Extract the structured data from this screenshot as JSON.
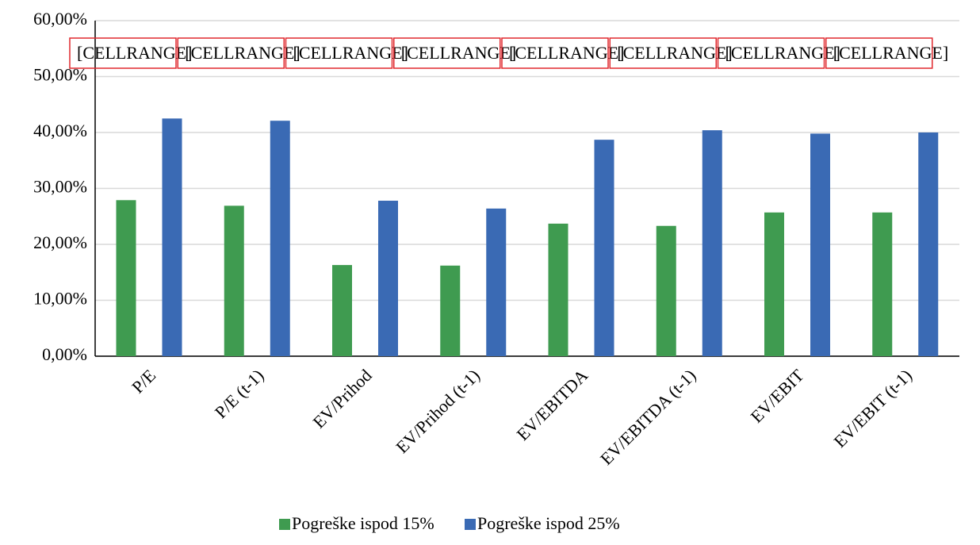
{
  "chart_data": {
    "type": "bar",
    "categories": [
      "P/E",
      "P/E (t-1)",
      "EV/Prihod",
      "EV/Prihod (t-1)",
      "EV/EBITDA",
      "EV/EBITDA (t-1)",
      "EV/EBIT",
      "EV/EBIT (t-1)"
    ],
    "series": [
      {
        "name": "Pogreške ispod 15%",
        "color": "#3f9b50",
        "values": [
          27.9,
          26.9,
          16.3,
          16.2,
          23.7,
          23.3,
          25.7,
          25.7
        ]
      },
      {
        "name": "Pogreške ispod 25%",
        "color": "#3a6ab4",
        "values": [
          42.5,
          42.1,
          27.8,
          26.4,
          38.7,
          40.4,
          39.8,
          40.0
        ]
      }
    ],
    "cell_range_labels": [
      "[CELLRANGE]",
      "[CELLRANGE]",
      "[CELLRANGE]",
      "[CELLRANGE]",
      "[CELLRANGE]",
      "[CELLRANGE]",
      "[CELLRANGE]",
      "[CELLRANGE]"
    ],
    "ylim": [
      0,
      60
    ],
    "yticks": [
      {
        "value": 0,
        "label": "0,00%"
      },
      {
        "value": 10,
        "label": "10,00%"
      },
      {
        "value": 20,
        "label": "20,00%"
      },
      {
        "value": 30,
        "label": "30,00%"
      },
      {
        "value": 40,
        "label": "40,00%"
      },
      {
        "value": 50,
        "label": "50,00%"
      },
      {
        "value": 60,
        "label": "60,00%"
      }
    ],
    "grid": true,
    "legend": "bottom"
  }
}
